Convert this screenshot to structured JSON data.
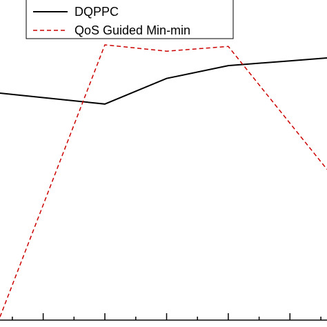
{
  "chart_data": {
    "type": "line",
    "x": [
      1,
      2,
      3,
      4,
      5
    ],
    "xlim": [
      0.3,
      5.6
    ],
    "ylim": [
      0,
      1
    ],
    "grid": false,
    "legend_position": "top-left",
    "series": [
      {
        "name": "DQPPC",
        "values": [
          0.695,
          0.675,
          0.755,
          0.795,
          0.81
        ],
        "color": "#000000",
        "line_style": "solid"
      },
      {
        "name": "QoS Guided Min-min",
        "values": [
          0.36,
          0.86,
          0.84,
          0.855,
          0.615
        ],
        "color": "#cc0000",
        "line_style": "dashed"
      }
    ]
  }
}
